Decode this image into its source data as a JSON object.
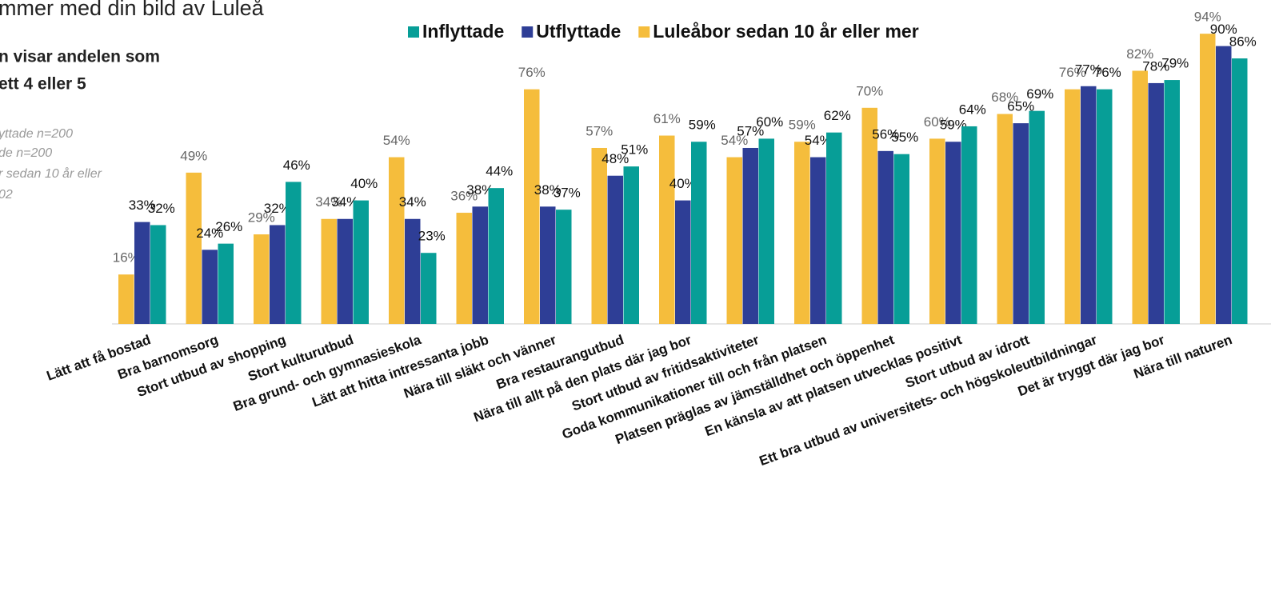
{
  "chart_data": {
    "type": "bar",
    "title": "mmer med din bild av Luleå",
    "subtitle": [
      "n visar andelen som",
      "ett 4 eller 5"
    ],
    "notes": [
      "yttade n=200",
      "de n=200",
      "r sedan 10 år eller",
      "02"
    ],
    "categories": [
      "Lätt att få bostad",
      "Bra barnomsorg",
      "Stort utbud av shopping",
      "Stort kulturutbud",
      "Bra grund- och gymnasieskola",
      "Lätt att hitta intressanta jobb",
      "Nära till släkt och vänner",
      "Bra restaurangutbud",
      "Nära till allt på den plats där jag bor",
      "Stort utbud av fritidsaktiviteter",
      "Goda kommunikationer till och från platsen",
      "Platsen präglas av jämställdhet och öppenhet",
      "En känsla av att platsen utvecklas positivt",
      "Stort utbud av idrott",
      "Ett bra utbud av universitets- och högskoleutbildningar",
      "Det är tryggt där jag bor",
      "Nära till naturen"
    ],
    "series": [
      {
        "name": "Luleåbor sedan 10 år eller mer",
        "color": "#f5bd3c",
        "values": [
          16,
          49,
          29,
          34,
          54,
          36,
          76,
          57,
          61,
          54,
          59,
          70,
          60,
          68,
          76,
          82,
          94
        ],
        "value_labels": [
          "16%",
          "49%",
          "29%",
          "34%",
          "54%",
          "36%",
          "76%",
          "57%",
          "61%",
          "54%",
          "59%",
          "70%",
          "60%",
          "68%",
          "76%",
          "82%",
          "94%"
        ]
      },
      {
        "name": "Utflyttade",
        "color": "#2e3e96",
        "values": [
          33,
          24,
          32,
          34,
          34,
          38,
          38,
          48,
          40,
          57,
          54,
          56,
          59,
          65,
          77,
          78,
          90
        ],
        "value_labels": [
          "33%",
          "24%",
          "32%",
          "34%",
          "34%",
          "38%",
          "38%",
          "48%",
          "40%",
          "57%",
          "54%",
          "56%",
          "59%",
          "65%",
          "77%",
          "78%",
          "90%"
        ]
      },
      {
        "name": "Inflyttade",
        "color": "#079e97",
        "values": [
          32,
          26,
          46,
          40,
          23,
          44,
          37,
          51,
          59,
          60,
          62,
          55,
          64,
          69,
          76,
          79,
          86
        ],
        "value_labels": [
          "32%",
          "26%",
          "46%",
          "40%",
          "23%",
          "44%",
          "37%",
          "51%",
          "59%",
          "60%",
          "62%",
          "55%",
          "64%",
          "69%",
          "76%",
          "79%",
          "86%"
        ]
      }
    ],
    "legend_order": [
      "Inflyttade",
      "Utflyttade",
      "Luleåbor sedan 10 år eller mer"
    ],
    "ylim": [
      0,
      100
    ]
  }
}
